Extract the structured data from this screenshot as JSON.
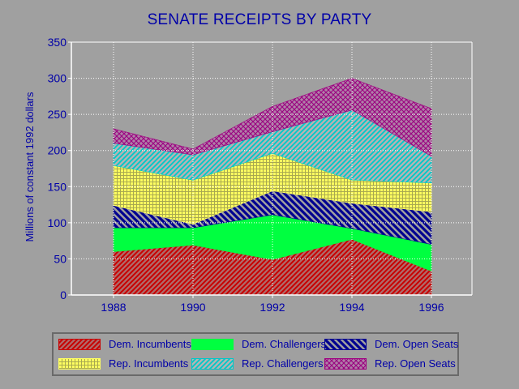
{
  "chart_data": {
    "type": "area",
    "stacked": true,
    "title": "SENATE RECEIPTS BY PARTY",
    "ylabel": "Millions of constant 1992 dollars",
    "xlabel": "",
    "x": [
      "1988",
      "1990",
      "1992",
      "1994",
      "1996"
    ],
    "ylim": [
      0,
      350
    ],
    "yticks": [
      "0",
      "50",
      "100",
      "150",
      "200",
      "250",
      "300",
      "350"
    ],
    "grid": true,
    "legend_position": "bottom",
    "series": [
      {
        "name": "Dem. Incumbents",
        "values": [
          60,
          69,
          49,
          77,
          33
        ],
        "color": "#c80000",
        "pattern": "diag-red"
      },
      {
        "name": "Dem. Challengers",
        "values": [
          33,
          24,
          62,
          15,
          37
        ],
        "color": "#00ff40",
        "pattern": "solid-green"
      },
      {
        "name": "Dem. Open Seats",
        "values": [
          31,
          5,
          33,
          35,
          45
        ],
        "color": "#000090",
        "pattern": "diag-navy"
      },
      {
        "name": "Rep. Incumbents",
        "values": [
          55,
          61,
          52,
          32,
          40
        ],
        "color": "#ffff60",
        "pattern": "grid-yellow"
      },
      {
        "name": "Rep. Challengers",
        "values": [
          31,
          35,
          30,
          97,
          37
        ],
        "color": "#00c8c8",
        "pattern": "diag-cyan"
      },
      {
        "name": "Rep. Open Seats",
        "values": [
          20,
          8,
          35,
          44,
          66
        ],
        "color": "#a00080",
        "pattern": "cross-purple"
      }
    ]
  }
}
